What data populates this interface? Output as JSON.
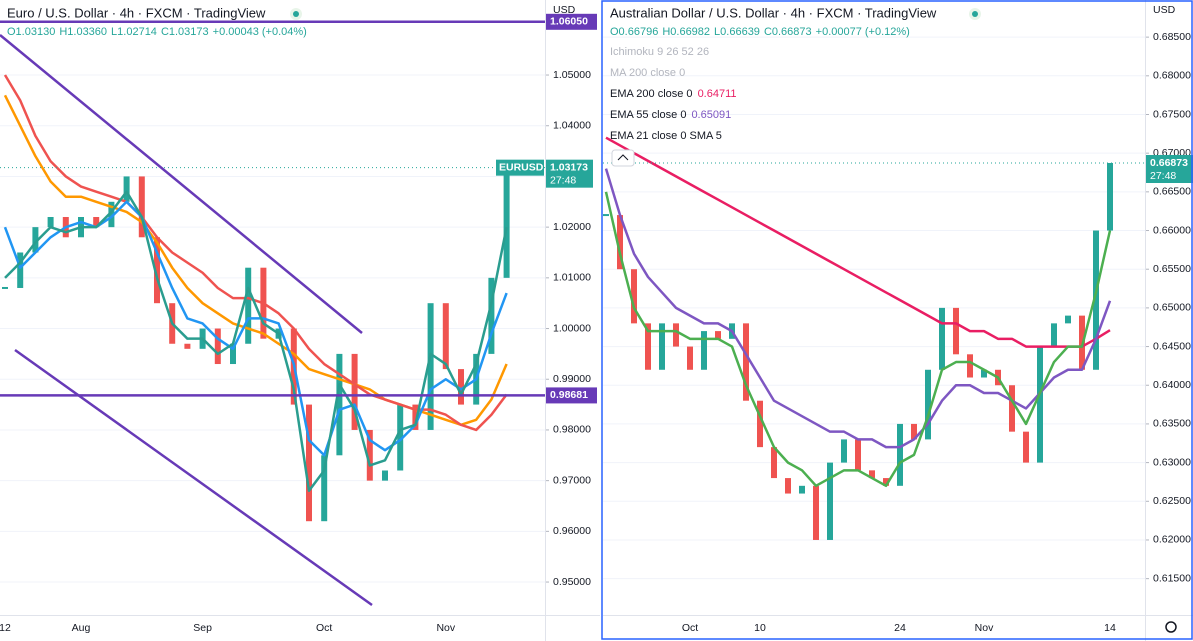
{
  "chart_data": [
    {
      "type": "candlestick",
      "title": "Euro / U.S. Dollar · 4h · FXCM · TradingView",
      "ohlc": [
        "O1.03130",
        "H1.03360",
        "L1.02714",
        "C1.03173",
        "+0.00043 (+0.04%)"
      ],
      "currency": "USD",
      "symbol_label": "EURUSD",
      "last_price": 1.03173,
      "countdown": "27:48",
      "categories": [
        "12",
        null,
        null,
        null,
        null,
        "Aug",
        null,
        null,
        null,
        null,
        null,
        null,
        null,
        "Sep",
        null,
        null,
        null,
        null,
        null,
        null,
        null,
        "Oct",
        null,
        null,
        null,
        null,
        null,
        null,
        null,
        "Nov",
        null,
        null,
        null,
        null
      ],
      "values": [
        1.008,
        1.015,
        1.02,
        1.022,
        1.018,
        1.022,
        1.02,
        1.025,
        1.03,
        1.018,
        1.005,
        0.997,
        0.996,
        1.0,
        0.993,
        0.997,
        1.012,
        0.998,
        1.0,
        0.985,
        0.962,
        0.975,
        0.995,
        0.98,
        0.97,
        0.972,
        0.985,
        0.98,
        1.005,
        0.992,
        0.985,
        0.995,
        1.01,
        1.03173
      ],
      "up_color": "#26a69a",
      "down_color": "#ef5350",
      "series": [
        {
          "color": "#ff9800",
          "values": [
            1.046,
            1.04,
            1.034,
            1.029,
            1.026,
            1.026,
            1.025,
            1.024,
            1.023,
            1.021,
            1.017,
            1.012,
            1.008,
            1.005,
            1.003,
            1.001,
            1.0,
            0.999,
            0.997,
            0.995,
            0.992,
            0.991,
            0.99,
            0.989,
            0.988,
            0.986,
            0.985,
            0.984,
            0.983,
            0.982,
            0.981,
            0.982,
            0.986,
            0.993
          ]
        },
        {
          "color": "#ef5350",
          "values": [
            1.05,
            1.045,
            1.038,
            1.033,
            1.03,
            1.028,
            1.027,
            1.026,
            1.025,
            1.022,
            1.018,
            1.015,
            1.013,
            1.011,
            1.008,
            1.006,
            1.006,
            1.005,
            1.003,
            1.0,
            0.996,
            0.993,
            0.991,
            0.989,
            0.987,
            0.986,
            0.985,
            0.984,
            0.984,
            0.983,
            0.981,
            0.98,
            0.983,
            0.987
          ]
        },
        {
          "color": "#2196f3",
          "values": [
            1.02,
            1.012,
            1.015,
            1.018,
            1.02,
            1.021,
            1.02,
            1.022,
            1.025,
            1.022,
            1.015,
            1.008,
            1.002,
            1.001,
            0.998,
            0.996,
            1.002,
            1.002,
            1.001,
            0.993,
            0.978,
            0.975,
            0.984,
            0.985,
            0.978,
            0.976,
            0.978,
            0.981,
            0.988,
            0.99,
            0.988,
            0.99,
            0.999,
            1.007
          ]
        },
        {
          "color": "#2a9d8f",
          "values": [
            1.01,
            1.013,
            1.017,
            1.02,
            1.019,
            1.02,
            1.02,
            1.023,
            1.027,
            1.022,
            1.01,
            1.001,
            0.998,
            0.998,
            0.995,
            0.997,
            1.008,
            1.001,
            0.999,
            0.988,
            0.968,
            0.972,
            0.989,
            0.984,
            0.973,
            0.974,
            0.98,
            0.981,
            0.995,
            0.993,
            0.987,
            0.993,
            1.005,
            1.02
          ]
        }
      ],
      "hlines": [
        {
          "value": 1.0605,
          "label": "1.06050"
        },
        {
          "value": 0.98681,
          "label": "0.98681"
        }
      ],
      "ylim": [
        0.9435,
        1.0648
      ],
      "yticks": [
        {
          "value": 0.95,
          "label": "0.95000"
        },
        {
          "value": 0.96,
          "label": "0.96000"
        },
        {
          "value": 0.97,
          "label": "0.97000"
        },
        {
          "value": 0.98,
          "label": "0.98000"
        },
        {
          "value": 0.99,
          "label": "0.99000"
        },
        {
          "value": 1.0,
          "label": "1.00000"
        },
        {
          "value": 1.01,
          "label": "1.01000"
        },
        {
          "value": 1.02,
          "label": "1.02000"
        },
        {
          "value": 1.03,
          "label": "1.03000"
        },
        {
          "value": 1.04,
          "label": "1.04000"
        },
        {
          "value": 1.05,
          "label": "1.05000"
        }
      ],
      "grid": true
    },
    {
      "type": "candlestick",
      "title": "Australian Dollar / U.S. Dollar · 4h · FXCM · TradingView",
      "ohlc": [
        "O0.66796",
        "H0.66982",
        "L0.66639",
        "C0.66873",
        "+0.00077 (+0.12%)"
      ],
      "currency": "USD",
      "last_price": 0.66873,
      "countdown": "27:48",
      "indicators": [
        "Ichimoku 9 26 52 26",
        "MA 200 close 0"
      ],
      "categories": [
        null,
        null,
        null,
        null,
        null,
        null,
        "Oct",
        null,
        null,
        null,
        null,
        "10",
        null,
        null,
        null,
        null,
        null,
        null,
        null,
        null,
        null,
        "24",
        null,
        null,
        null,
        null,
        null,
        "Nov",
        null,
        null,
        null,
        null,
        null,
        null,
        null,
        null,
        "14"
      ],
      "values": [
        0.662,
        0.655,
        0.648,
        0.642,
        0.648,
        0.645,
        0.642,
        0.647,
        0.646,
        0.648,
        0.638,
        0.632,
        0.628,
        0.626,
        0.627,
        0.62,
        0.63,
        0.633,
        0.629,
        0.628,
        0.627,
        0.635,
        0.633,
        0.642,
        0.65,
        0.644,
        0.641,
        0.642,
        0.64,
        0.634,
        0.63,
        0.645,
        0.648,
        0.649,
        0.642,
        0.66,
        0.66873
      ],
      "up_color": "#26a69a",
      "down_color": "#ef5350",
      "series": [
        {
          "name": "EMA 200 close 0",
          "legend_value": 0.64711,
          "color": "#e91e63",
          "values": [
            0.672,
            0.671,
            0.67,
            0.669,
            0.668,
            0.667,
            0.666,
            0.665,
            0.664,
            0.663,
            0.662,
            0.661,
            0.66,
            0.659,
            0.658,
            0.657,
            0.656,
            0.655,
            0.654,
            0.653,
            0.652,
            0.651,
            0.65,
            0.649,
            0.648,
            0.648,
            0.647,
            0.647,
            0.646,
            0.646,
            0.645,
            0.645,
            0.645,
            0.645,
            0.645,
            0.646,
            0.64711
          ]
        },
        {
          "name": "EMA 55 close 0",
          "legend_value": 0.65091,
          "color": "#7e57c2",
          "values": [
            0.668,
            0.662,
            0.657,
            0.654,
            0.652,
            0.65,
            0.649,
            0.648,
            0.648,
            0.647,
            0.644,
            0.641,
            0.638,
            0.637,
            0.636,
            0.635,
            0.634,
            0.634,
            0.633,
            0.633,
            0.632,
            0.632,
            0.633,
            0.635,
            0.638,
            0.64,
            0.64,
            0.639,
            0.639,
            0.638,
            0.637,
            0.639,
            0.641,
            0.642,
            0.642,
            0.646,
            0.65091
          ]
        },
        {
          "name": "EMA 21 close 0 SMA 5",
          "color": "#4caf50",
          "values": [
            0.665,
            0.657,
            0.65,
            0.647,
            0.647,
            0.647,
            0.646,
            0.646,
            0.646,
            0.645,
            0.64,
            0.636,
            0.632,
            0.63,
            0.629,
            0.627,
            0.628,
            0.629,
            0.629,
            0.628,
            0.627,
            0.63,
            0.631,
            0.636,
            0.642,
            0.643,
            0.643,
            0.642,
            0.641,
            0.638,
            0.635,
            0.639,
            0.643,
            0.645,
            0.645,
            0.652,
            0.66
          ]
        }
      ],
      "ylim": [
        0.6103,
        0.6898
      ],
      "yticks": [
        {
          "value": 0.615,
          "label": "0.61500"
        },
        {
          "value": 0.62,
          "label": "0.62000"
        },
        {
          "value": 0.625,
          "label": "0.62500"
        },
        {
          "value": 0.63,
          "label": "0.63000"
        },
        {
          "value": 0.635,
          "label": "0.63500"
        },
        {
          "value": 0.64,
          "label": "0.64000"
        },
        {
          "value": 0.645,
          "label": "0.64500"
        },
        {
          "value": 0.65,
          "label": "0.65000"
        },
        {
          "value": 0.655,
          "label": "0.65500"
        },
        {
          "value": 0.66,
          "label": "0.66000"
        },
        {
          "value": 0.665,
          "label": "0.66500"
        },
        {
          "value": 0.67,
          "label": "0.67000"
        },
        {
          "value": 0.675,
          "label": "0.67500"
        },
        {
          "value": 0.68,
          "label": "0.68000"
        },
        {
          "value": 0.685,
          "label": "0.68500"
        }
      ],
      "grid": true
    }
  ]
}
